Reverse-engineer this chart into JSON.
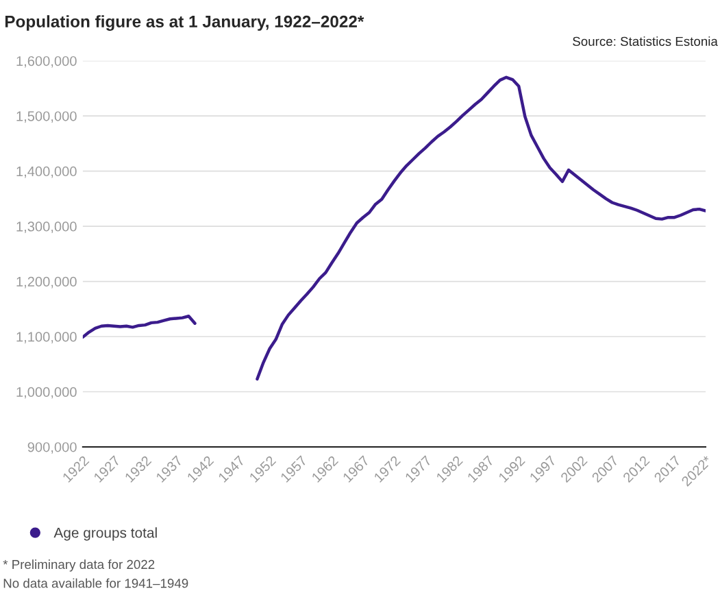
{
  "chart_data": {
    "type": "line",
    "title": "Population figure as at 1 January, 1922–2022*",
    "annotations": [
      "Source: Statistics Estonia",
      "* Preliminary data for 2022",
      "No data available for 1941–1949"
    ],
    "x": [
      1922,
      1923,
      1924,
      1925,
      1926,
      1927,
      1928,
      1929,
      1930,
      1931,
      1932,
      1933,
      1934,
      1935,
      1936,
      1937,
      1938,
      1939,
      1940,
      1941,
      1942,
      1943,
      1944,
      1945,
      1946,
      1947,
      1948,
      1949,
      1950,
      1951,
      1952,
      1953,
      1954,
      1955,
      1956,
      1957,
      1958,
      1959,
      1960,
      1961,
      1962,
      1963,
      1964,
      1965,
      1966,
      1967,
      1968,
      1969,
      1970,
      1971,
      1972,
      1973,
      1974,
      1975,
      1976,
      1977,
      1978,
      1979,
      1980,
      1981,
      1982,
      1983,
      1984,
      1985,
      1986,
      1987,
      1988,
      1989,
      1990,
      1991,
      1992,
      1993,
      1994,
      1995,
      1996,
      1997,
      1998,
      1999,
      2000,
      2001,
      2002,
      2003,
      2004,
      2005,
      2006,
      2007,
      2008,
      2009,
      2010,
      2011,
      2012,
      2013,
      2014,
      2015,
      2016,
      2017,
      2018,
      2019,
      2020,
      2021,
      2022
    ],
    "series": [
      {
        "name": "Age groups total",
        "color": "#3b1c8c",
        "values": [
          1099000,
          1108000,
          1115000,
          1119000,
          1120000,
          1119000,
          1118000,
          1119000,
          1117000,
          1120000,
          1121000,
          1125000,
          1126000,
          1129000,
          1132000,
          1133000,
          1134000,
          1137000,
          1124000,
          null,
          null,
          null,
          null,
          null,
          null,
          null,
          null,
          null,
          1023000,
          1053000,
          1078000,
          1095000,
          1122000,
          1139000,
          1152000,
          1165000,
          1177000,
          1190000,
          1205000,
          1216000,
          1234000,
          1251000,
          1270000,
          1289000,
          1306000,
          1316000,
          1325000,
          1340000,
          1349000,
          1366000,
          1382000,
          1397000,
          1410000,
          1421000,
          1432000,
          1442000,
          1453000,
          1463000,
          1471000,
          1480000,
          1490000,
          1501000,
          1511000,
          1521000,
          1530000,
          1542000,
          1554000,
          1565000,
          1570000,
          1566000,
          1554000,
          1499000,
          1465000,
          1444000,
          1423000,
          1406000,
          1394000,
          1381000,
          1402000,
          1393000,
          1384000,
          1375000,
          1366000,
          1358000,
          1350000,
          1343000,
          1339000,
          1336000,
          1333000,
          1329000,
          1324000,
          1319000,
          1314000,
          1313000,
          1316000,
          1316000,
          1320000,
          1325000,
          1330000,
          1331000,
          1328000
        ]
      }
    ],
    "xlim": [
      1922,
      2022
    ],
    "xticks": [
      1922,
      1927,
      1932,
      1937,
      1942,
      1947,
      1952,
      1957,
      1962,
      1967,
      1972,
      1977,
      1982,
      1987,
      1992,
      1997,
      2002,
      2007,
      2012,
      2017,
      {
        "value": 2022,
        "label": "2022*"
      }
    ],
    "ylim": [
      900000,
      1600000
    ],
    "yticks": [
      {
        "value": 900000,
        "label": "900,000"
      },
      {
        "value": 1000000,
        "label": "1,000,000"
      },
      {
        "value": 1100000,
        "label": "1,100,000"
      },
      {
        "value": 1200000,
        "label": "1,200,000"
      },
      {
        "value": 1300000,
        "label": "1,300,000"
      },
      {
        "value": 1400000,
        "label": "1,400,000"
      },
      {
        "value": 1500000,
        "label": "1,500,000"
      },
      {
        "value": 1600000,
        "label": "1,600,000"
      }
    ],
    "grid": "y",
    "legend": "bottom left",
    "line_style": "solid"
  }
}
